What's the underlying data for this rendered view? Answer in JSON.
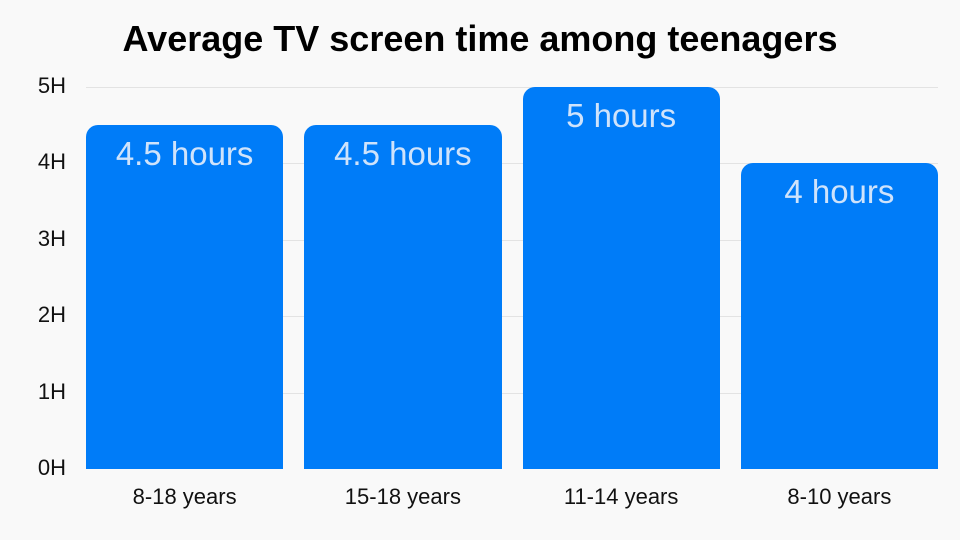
{
  "chart_data": {
    "type": "bar",
    "title": "Average TV screen time among teenagers",
    "xlabel": "",
    "ylabel": "",
    "categories": [
      "8-18 years",
      "15-18 years",
      "11-14 years",
      "8-10 years"
    ],
    "values": [
      4.5,
      4.5,
      5,
      4
    ],
    "data_labels": [
      "4.5 hours",
      "4.5 hours",
      "5 hours",
      "4 hours"
    ],
    "ylim": [
      0,
      5
    ],
    "yticks": [
      "0H",
      "1H",
      "2H",
      "3H",
      "4H",
      "5H"
    ],
    "grid": true,
    "legend": "none",
    "bar_color": "#007cf8",
    "label_color": "#cfe3fb",
    "background": "#f9f9f9"
  }
}
